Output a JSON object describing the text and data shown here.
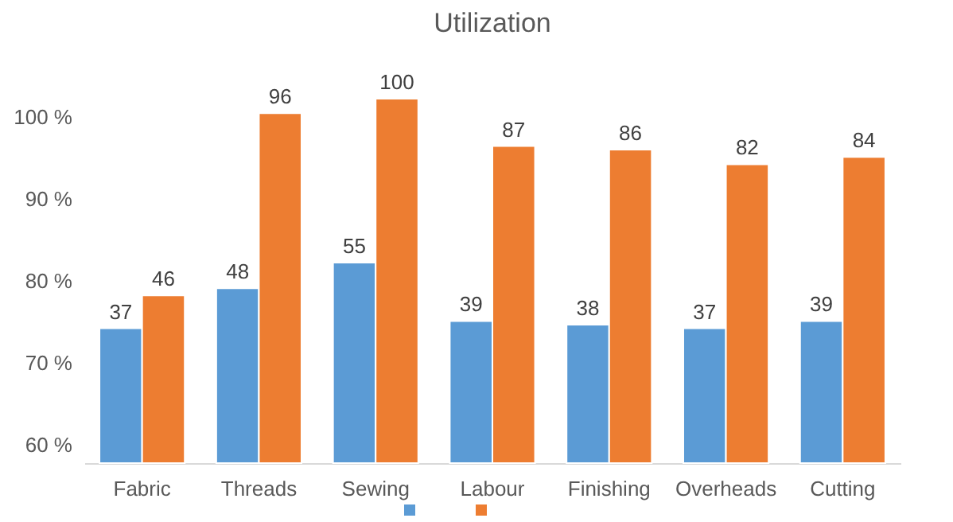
{
  "chart_data": {
    "type": "bar",
    "title": "Utilization",
    "categories": [
      "Fabric",
      "Threads",
      "Sewing",
      "Labour",
      "Finishing",
      "Overheads",
      "Cutting"
    ],
    "series": [
      {
        "color": "#5b9bd5",
        "axis": "y2",
        "values": [
          37,
          48,
          55,
          39,
          38,
          37,
          39
        ]
      },
      {
        "color": "#ed7d31",
        "axis": "y2",
        "values": [
          46,
          96,
          100,
          87,
          86,
          82,
          84
        ]
      }
    ],
    "ylim": [
      57.8,
      102.2
    ],
    "yticks": [
      {
        "value": 60,
        "label": "60 %"
      },
      {
        "value": 70,
        "label": "70 %"
      },
      {
        "value": 80,
        "label": "80 %"
      },
      {
        "value": 90,
        "label": "90 %"
      },
      {
        "value": 100,
        "label": "100 %"
      }
    ],
    "y2lim": [
      0,
      100
    ],
    "data_labels": true,
    "grid": false
  }
}
